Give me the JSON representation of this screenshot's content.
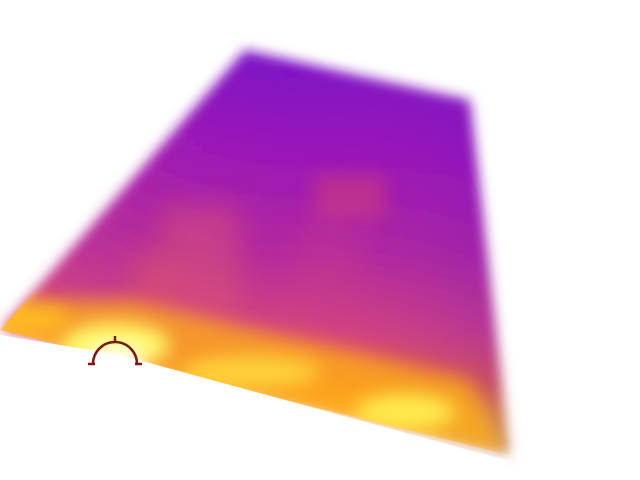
{
  "image": {
    "kind": "thermal-image",
    "palette": "ironbow",
    "colors": {
      "background": "#ffffff",
      "cold": "#7a10c8",
      "mid_cold": "#a218b0",
      "mid": "#cf3a8a",
      "warm": "#f05a4a",
      "hot": "#ff9a1a",
      "hottest": "#ffff60",
      "reticle": "#7a1a10"
    },
    "icons": {
      "reticle": "spot-measurement-reticle-icon"
    }
  }
}
